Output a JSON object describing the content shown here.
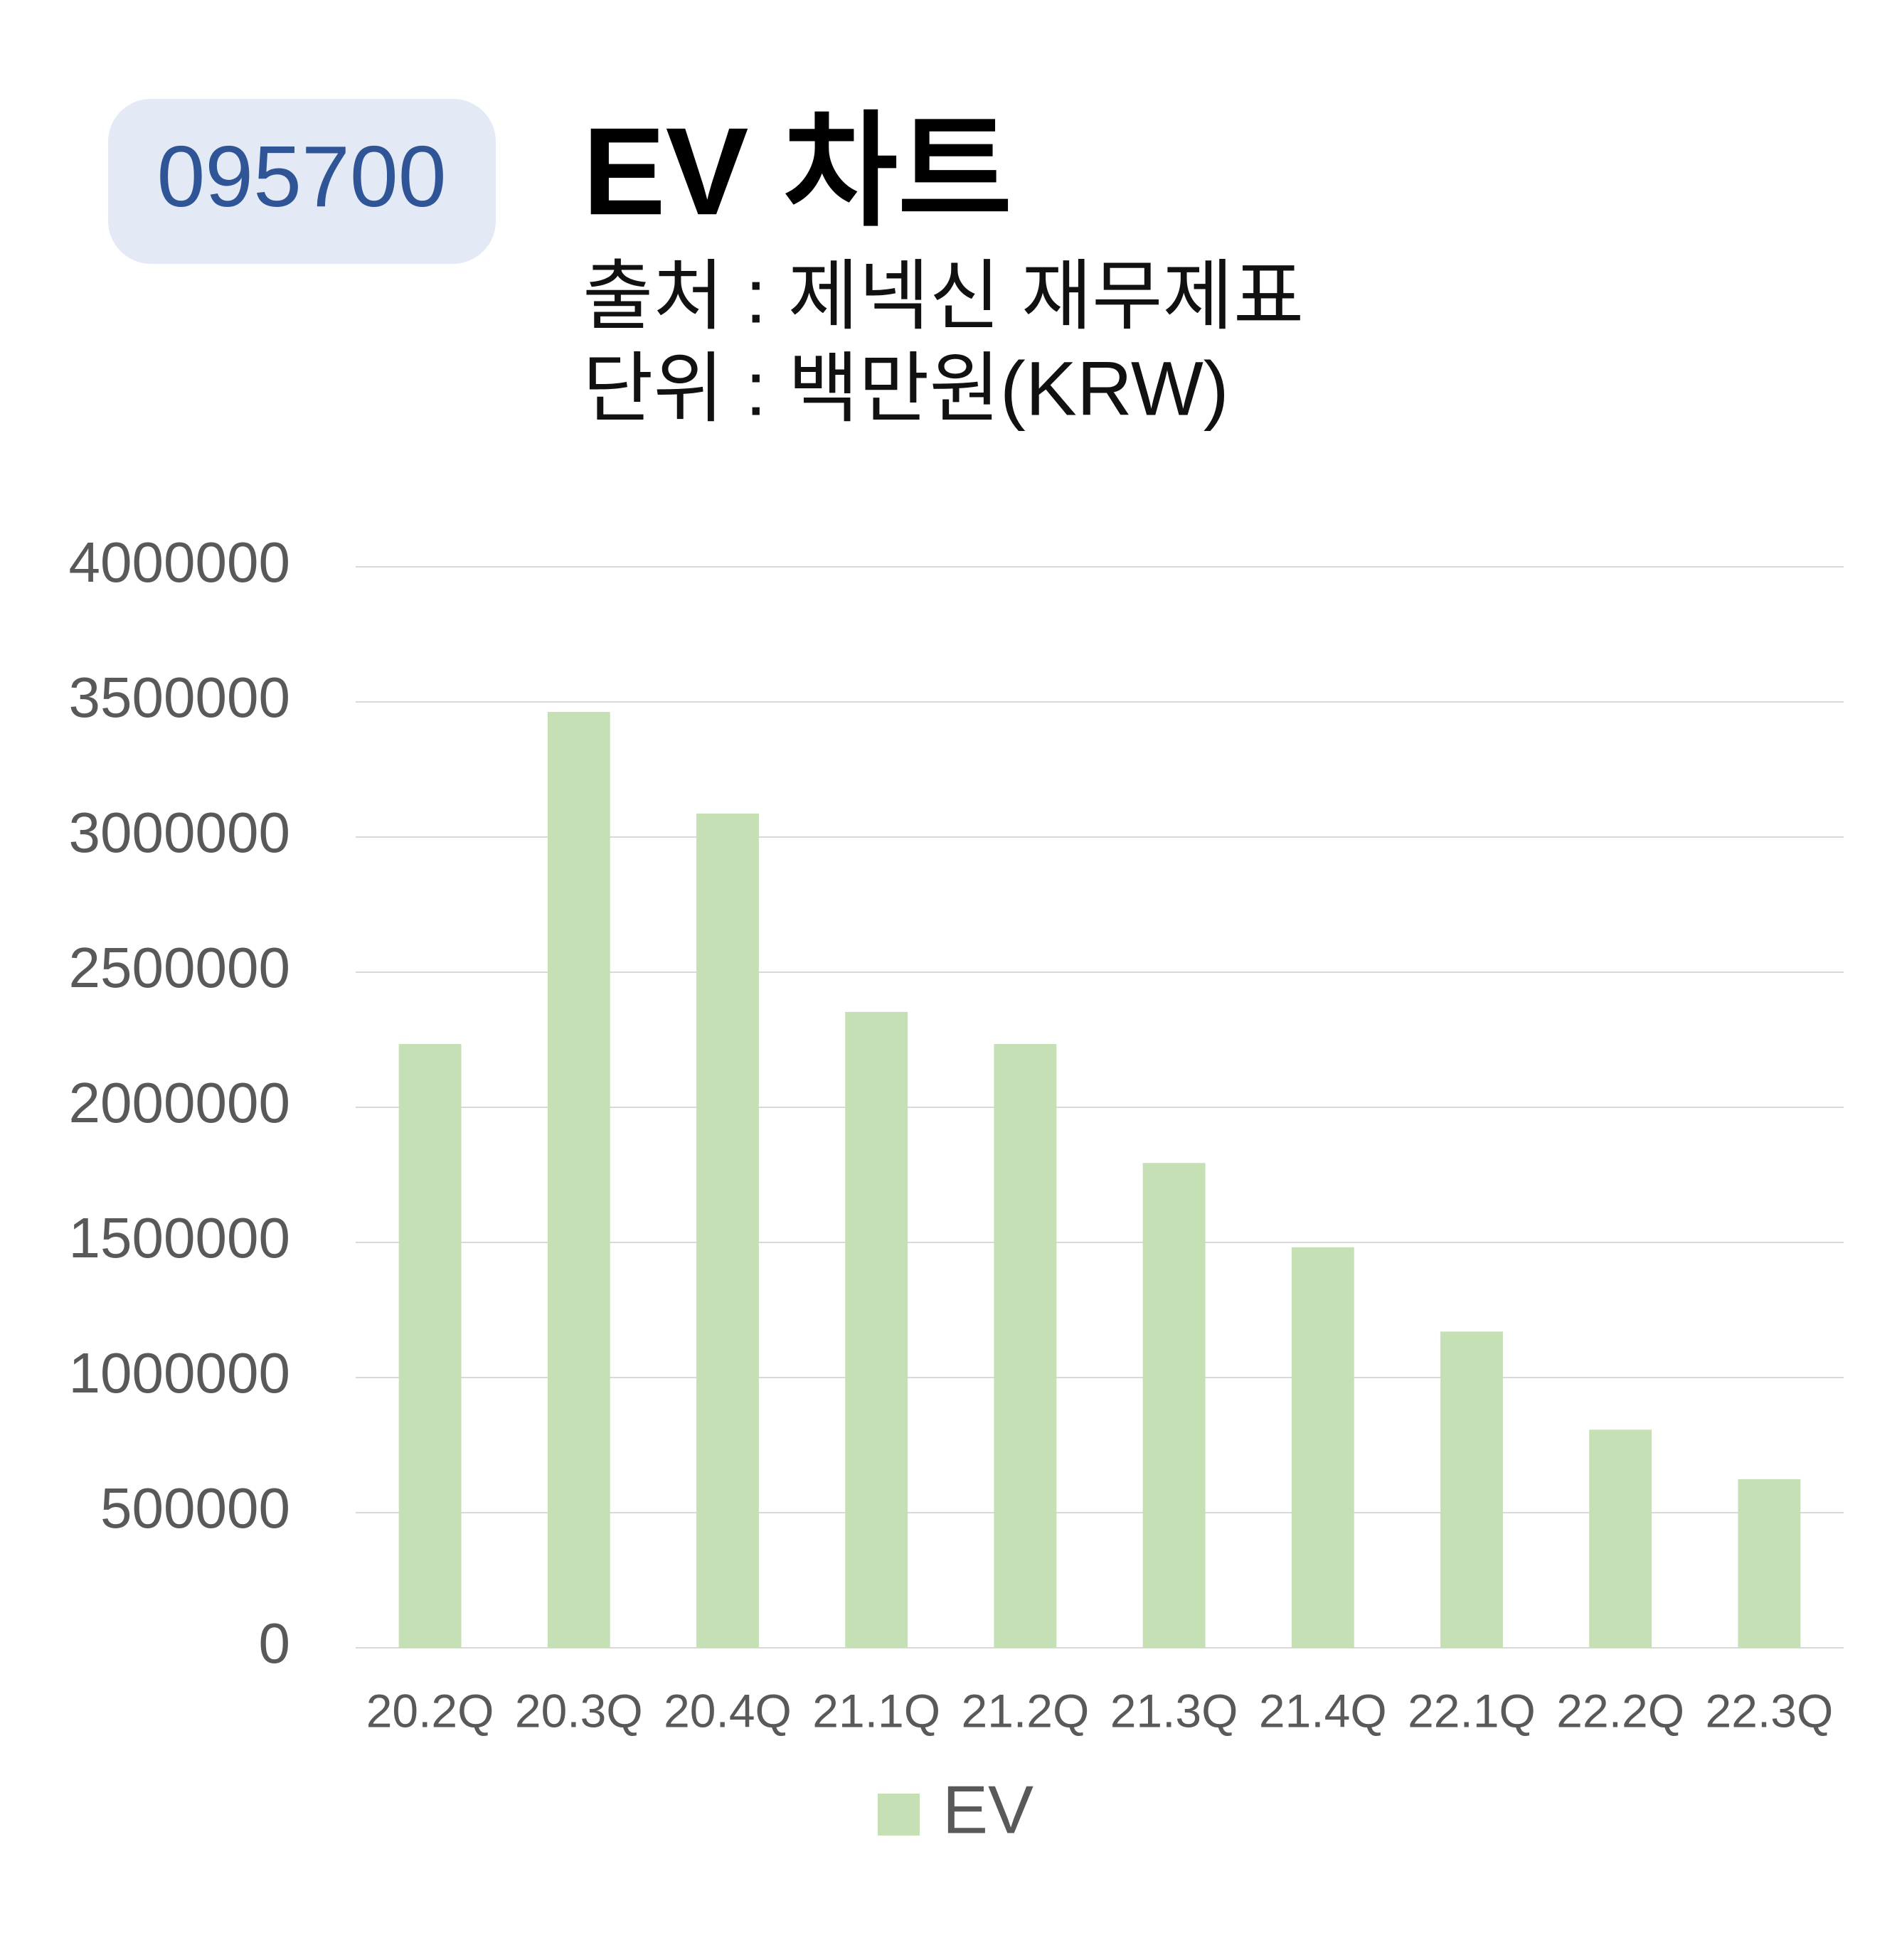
{
  "chart_data": {
    "type": "bar",
    "badge": "095700",
    "title": "EV 차트",
    "subtitle": [
      "출처 : 제넥신 재무제표",
      "단위 : 백만원(KRW)"
    ],
    "categories": [
      "20.2Q",
      "20.3Q",
      "20.4Q",
      "21.1Q",
      "21.2Q",
      "21.3Q",
      "21.4Q",
      "22.1Q",
      "22.2Q",
      "22.3Q"
    ],
    "series": [
      {
        "name": "EV",
        "color": "#c5e0b4",
        "values": [
          2234000,
          3463000,
          3087000,
          2353000,
          2234000,
          1794000,
          1482000,
          1170000,
          807000,
          624000
        ]
      }
    ],
    "ylim": [
      0,
      4000000
    ],
    "yticks": [
      0,
      500000,
      1000000,
      1500000,
      2000000,
      2500000,
      3000000,
      3500000,
      4000000
    ],
    "grid": true,
    "legend": "bottom"
  }
}
